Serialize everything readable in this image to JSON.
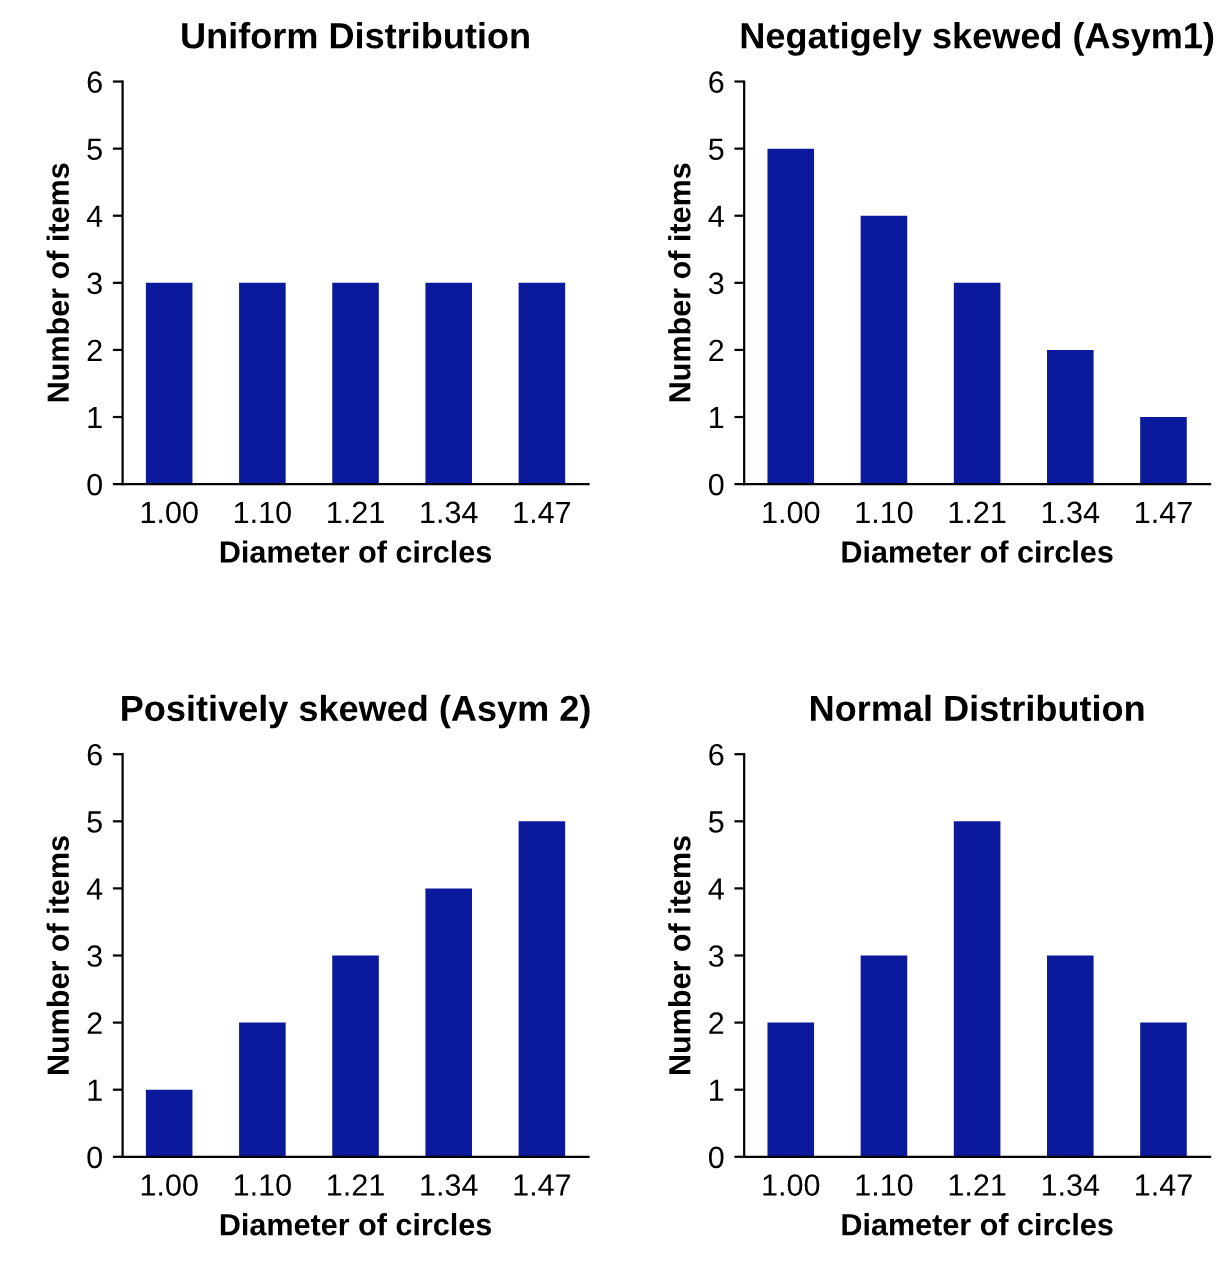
{
  "chart_data": [
    {
      "type": "bar",
      "title": "Uniform Distribution",
      "xlabel": "Diameter of circles",
      "ylabel": "Number of items",
      "categories": [
        "1.00",
        "1.10",
        "1.21",
        "1.34",
        "1.47"
      ],
      "values": [
        3,
        3,
        3,
        3,
        3
      ],
      "color": "#0b1a9c",
      "ylim": [
        0,
        6
      ],
      "yticks": [
        0,
        1,
        2,
        3,
        4,
        5,
        6
      ]
    },
    {
      "type": "bar",
      "title": "Negatigely skewed (Asym1)",
      "xlabel": "Diameter of circles",
      "ylabel": "Number of items",
      "categories": [
        "1.00",
        "1.10",
        "1.21",
        "1.34",
        "1.47"
      ],
      "values": [
        5,
        4,
        3,
        2,
        1
      ],
      "color": "#0b1a9c",
      "ylim": [
        0,
        6
      ],
      "yticks": [
        0,
        1,
        2,
        3,
        4,
        5,
        6
      ]
    },
    {
      "type": "bar",
      "title": "Positively skewed (Asym 2)",
      "xlabel": "Diameter of circles",
      "ylabel": "Number of items",
      "categories": [
        "1.00",
        "1.10",
        "1.21",
        "1.34",
        "1.47"
      ],
      "values": [
        1,
        2,
        3,
        4,
        5
      ],
      "color": "#0b1a9c",
      "ylim": [
        0,
        6
      ],
      "yticks": [
        0,
        1,
        2,
        3,
        4,
        5,
        6
      ]
    },
    {
      "type": "bar",
      "title": "Normal Distribution",
      "xlabel": "Diameter of circles",
      "ylabel": "Number of items",
      "categories": [
        "1.00",
        "1.10",
        "1.21",
        "1.34",
        "1.47"
      ],
      "values": [
        2,
        3,
        5,
        3,
        2
      ],
      "color": "#0b1a9c",
      "ylim": [
        0,
        6
      ],
      "yticks": [
        0,
        1,
        2,
        3,
        4,
        5,
        6
      ]
    }
  ]
}
